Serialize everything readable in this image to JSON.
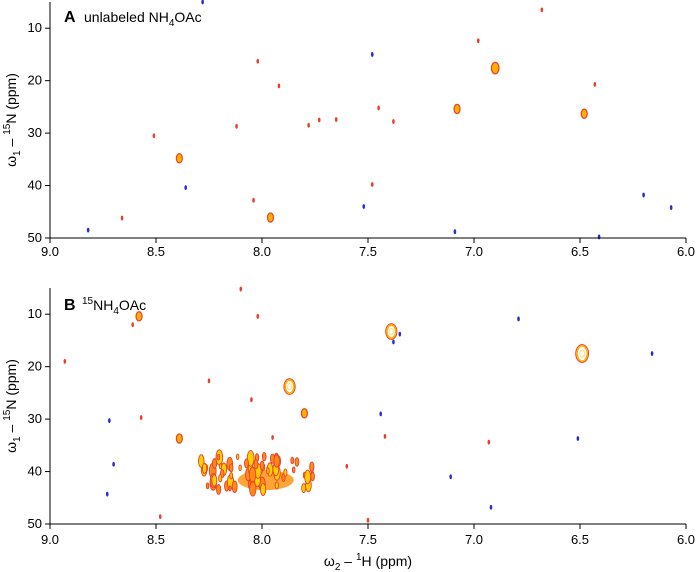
{
  "chart_data": [
    {
      "type": "scatter",
      "panel_letter": "A",
      "title_parts": [
        "unlabeled NH",
        "4",
        "OAc"
      ],
      "xlim": [
        9.0,
        6.0
      ],
      "ylim": [
        5,
        50
      ],
      "x_ticks": [
        9.0,
        8.5,
        8.0,
        7.5,
        7.0,
        6.5,
        6.0
      ],
      "x_tick_labels": [
        "9.0",
        "8.5",
        "8.0",
        "7.5",
        "7.0",
        "6.5",
        "6.0"
      ],
      "y_ticks": [
        10,
        20,
        30,
        40,
        50
      ],
      "y_tick_labels": [
        "10",
        "20",
        "30",
        "40",
        "50"
      ],
      "ylabel_parts": [
        "ω",
        "1",
        " – ",
        "15",
        "N (ppm)"
      ],
      "colors": {
        "positive": "#e8402a",
        "strong": "#ffb000",
        "negative": "#2b2bd0"
      },
      "peaks": [
        {
          "x": 8.28,
          "y": 5.0,
          "sign": "neg",
          "i": 1
        },
        {
          "x": 8.02,
          "y": 16.3,
          "sign": "pos",
          "i": 1
        },
        {
          "x": 6.68,
          "y": 6.5,
          "sign": "pos",
          "i": 1
        },
        {
          "x": 6.98,
          "y": 12.4,
          "sign": "pos",
          "i": 1
        },
        {
          "x": 6.9,
          "y": 17.6,
          "sign": "pos",
          "i": 3
        },
        {
          "x": 7.48,
          "y": 15.0,
          "sign": "neg",
          "i": 1
        },
        {
          "x": 6.43,
          "y": 20.7,
          "sign": "pos",
          "i": 1
        },
        {
          "x": 7.92,
          "y": 21.0,
          "sign": "pos",
          "i": 1
        },
        {
          "x": 7.45,
          "y": 25.2,
          "sign": "pos",
          "i": 1
        },
        {
          "x": 7.08,
          "y": 25.4,
          "sign": "pos",
          "i": 2
        },
        {
          "x": 6.48,
          "y": 26.3,
          "sign": "pos",
          "i": 2
        },
        {
          "x": 7.73,
          "y": 27.5,
          "sign": "pos",
          "i": 1
        },
        {
          "x": 7.65,
          "y": 27.4,
          "sign": "pos",
          "i": 1
        },
        {
          "x": 7.38,
          "y": 27.8,
          "sign": "pos",
          "i": 1
        },
        {
          "x": 7.78,
          "y": 28.5,
          "sign": "pos",
          "i": 1
        },
        {
          "x": 8.12,
          "y": 28.7,
          "sign": "pos",
          "i": 1
        },
        {
          "x": 8.51,
          "y": 30.5,
          "sign": "pos",
          "i": 1
        },
        {
          "x": 8.39,
          "y": 34.8,
          "sign": "pos",
          "i": 2
        },
        {
          "x": 7.48,
          "y": 39.8,
          "sign": "pos",
          "i": 1
        },
        {
          "x": 8.36,
          "y": 40.4,
          "sign": "neg",
          "i": 1
        },
        {
          "x": 8.04,
          "y": 42.8,
          "sign": "pos",
          "i": 1
        },
        {
          "x": 6.2,
          "y": 41.8,
          "sign": "neg",
          "i": 1
        },
        {
          "x": 7.52,
          "y": 44.0,
          "sign": "neg",
          "i": 1
        },
        {
          "x": 6.07,
          "y": 44.2,
          "sign": "neg",
          "i": 2
        },
        {
          "x": 8.66,
          "y": 46.2,
          "sign": "pos",
          "i": 1
        },
        {
          "x": 7.96,
          "y": 46.1,
          "sign": "pos",
          "i": 2
        },
        {
          "x": 8.82,
          "y": 48.5,
          "sign": "neg",
          "i": 1
        },
        {
          "x": 7.09,
          "y": 48.8,
          "sign": "neg",
          "i": 1
        },
        {
          "x": 6.41,
          "y": 49.8,
          "sign": "neg",
          "i": 1
        }
      ]
    },
    {
      "type": "scatter",
      "panel_letter": "B",
      "title_parts": [
        "15",
        "NH",
        "4",
        "OAc"
      ],
      "xlim": [
        9.0,
        6.0
      ],
      "ylim": [
        5,
        50
      ],
      "x_ticks": [
        9.0,
        8.5,
        8.0,
        7.5,
        7.0,
        6.5,
        6.0
      ],
      "x_tick_labels": [
        "9.0",
        "8.5",
        "8.0",
        "7.5",
        "7.0",
        "6.5",
        "6.0"
      ],
      "y_ticks": [
        10,
        20,
        30,
        40,
        50
      ],
      "y_tick_labels": [
        "10",
        "20",
        "30",
        "40",
        "50"
      ],
      "xlabel_parts": [
        "ω",
        "2",
        " – ",
        "1",
        "H (ppm)"
      ],
      "ylabel_parts": [
        "ω",
        "1",
        " – ",
        "15",
        "N (ppm)"
      ],
      "colors": {
        "positive": "#e8402a",
        "strong": "#ffb000",
        "negative": "#2b2bd0"
      },
      "peaks": [
        {
          "x": 8.1,
          "y": 5.2,
          "sign": "pos",
          "i": 1
        },
        {
          "x": 8.58,
          "y": 10.4,
          "sign": "pos",
          "i": 2
        },
        {
          "x": 8.61,
          "y": 12.0,
          "sign": "pos",
          "i": 1
        },
        {
          "x": 8.02,
          "y": 10.4,
          "sign": "pos",
          "i": 1
        },
        {
          "x": 7.39,
          "y": 13.3,
          "sign": "pos",
          "i": 4
        },
        {
          "x": 7.38,
          "y": 15.3,
          "sign": "neg",
          "i": 1
        },
        {
          "x": 7.35,
          "y": 13.8,
          "sign": "neg",
          "i": 1
        },
        {
          "x": 6.79,
          "y": 10.9,
          "sign": "neg",
          "i": 1
        },
        {
          "x": 6.49,
          "y": 17.5,
          "sign": "pos",
          "i": 5
        },
        {
          "x": 6.16,
          "y": 17.5,
          "sign": "neg",
          "i": 1
        },
        {
          "x": 8.93,
          "y": 19.0,
          "sign": "pos",
          "i": 1
        },
        {
          "x": 7.87,
          "y": 23.8,
          "sign": "pos",
          "i": 4
        },
        {
          "x": 8.25,
          "y": 22.7,
          "sign": "pos",
          "i": 1
        },
        {
          "x": 8.05,
          "y": 26.3,
          "sign": "pos",
          "i": 1
        },
        {
          "x": 7.8,
          "y": 28.9,
          "sign": "pos",
          "i": 2
        },
        {
          "x": 8.57,
          "y": 29.7,
          "sign": "pos",
          "i": 1
        },
        {
          "x": 8.72,
          "y": 30.3,
          "sign": "neg",
          "i": 1
        },
        {
          "x": 7.44,
          "y": 29.0,
          "sign": "neg",
          "i": 1
        },
        {
          "x": 7.95,
          "y": 33.5,
          "sign": "pos",
          "i": 1
        },
        {
          "x": 8.39,
          "y": 33.7,
          "sign": "pos",
          "i": 2
        },
        {
          "x": 7.42,
          "y": 33.3,
          "sign": "pos",
          "i": 1
        },
        {
          "x": 6.93,
          "y": 34.4,
          "sign": "pos",
          "i": 1
        },
        {
          "x": 6.51,
          "y": 33.7,
          "sign": "neg",
          "i": 1
        },
        {
          "x": 8.7,
          "y": 38.6,
          "sign": "neg",
          "i": 1
        },
        {
          "x": 7.6,
          "y": 39.0,
          "sign": "pos",
          "i": 1
        },
        {
          "x": 7.11,
          "y": 41.0,
          "sign": "neg",
          "i": 1
        },
        {
          "x": 8.73,
          "y": 44.3,
          "sign": "neg",
          "i": 1
        },
        {
          "x": 8.48,
          "y": 48.6,
          "sign": "pos",
          "i": 1
        },
        {
          "x": 6.92,
          "y": 46.8,
          "sign": "neg",
          "i": 1
        },
        {
          "x": 7.5,
          "y": 49.3,
          "sign": "pos",
          "i": 1
        }
      ],
      "cluster": {
        "x_range": [
          8.3,
          7.74
        ],
        "y_range": [
          33.5,
          43.5
        ],
        "center": [
          8.02,
          40.5
        ]
      }
    }
  ]
}
